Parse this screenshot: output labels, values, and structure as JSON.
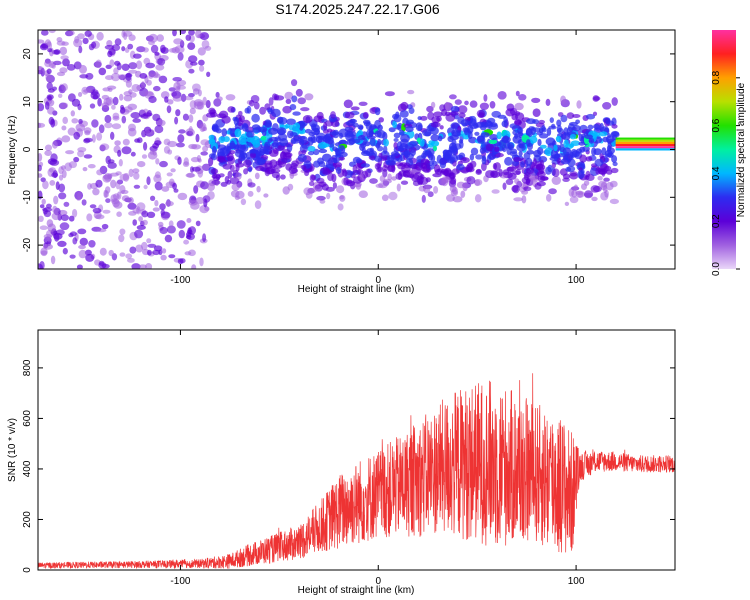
{
  "title": "S174.2025.247.22.17.G06",
  "chart_data": [
    {
      "type": "heatmap",
      "xlabel": "Height of straight line (km)",
      "ylabel": "Frequency (Hz)",
      "xlim": [
        -172,
        150
      ],
      "ylim": [
        -25,
        25
      ],
      "xticks": [
        -100,
        0,
        100
      ],
      "yticks": [
        -20,
        -10,
        0,
        10,
        20
      ],
      "colorbar": {
        "label": "Normalized spectral amplitude",
        "range": [
          0,
          1
        ],
        "ticks": [
          "0.0",
          "0.2",
          "0.4",
          "0.6",
          "0.8"
        ],
        "colors": [
          "#ead6f8",
          "#a060e0",
          "#5b00d8",
          "#2d2cf0",
          "#00b7ff",
          "#00f0a0",
          "#22e000",
          "#b8e000",
          "#ffa000",
          "#ff2020",
          "#ff30a0"
        ]
      },
      "signal_track": {
        "frequency_hz": [
          2,
          5,
          0,
          4,
          1,
          3,
          2,
          1,
          2,
          1
        ],
        "height_km": [
          -60,
          -40,
          -30,
          10,
          25,
          55,
          70,
          95,
          110,
          150
        ]
      }
    },
    {
      "type": "line",
      "xlabel": "Height of straight line (km)",
      "ylabel": "SNR (10 * v/v)",
      "xlim": [
        -172,
        150
      ],
      "ylim": [
        0,
        950
      ],
      "xticks": [
        -100,
        0,
        100
      ],
      "yticks": [
        0,
        200,
        400,
        600,
        800
      ],
      "line_color": "#ee3333",
      "envelope": {
        "x": [
          -172,
          -120,
          -90,
          -75,
          -65,
          -55,
          -40,
          -28,
          -20,
          -10,
          0,
          10,
          20,
          30,
          40,
          50,
          60,
          70,
          80,
          90,
          98,
          102,
          110,
          120,
          130,
          140,
          150
        ],
        "mean": [
          18,
          22,
          25,
          35,
          60,
          80,
          110,
          180,
          230,
          270,
          300,
          330,
          360,
          400,
          420,
          430,
          420,
          400,
          380,
          350,
          300,
          410,
          430,
          430,
          420,
          420,
          420
        ],
        "spread": [
          12,
          14,
          18,
          30,
          45,
          55,
          70,
          110,
          150,
          170,
          180,
          200,
          230,
          260,
          300,
          320,
          340,
          300,
          280,
          300,
          250,
          60,
          45,
          40,
          35,
          35,
          35
        ]
      }
    }
  ]
}
